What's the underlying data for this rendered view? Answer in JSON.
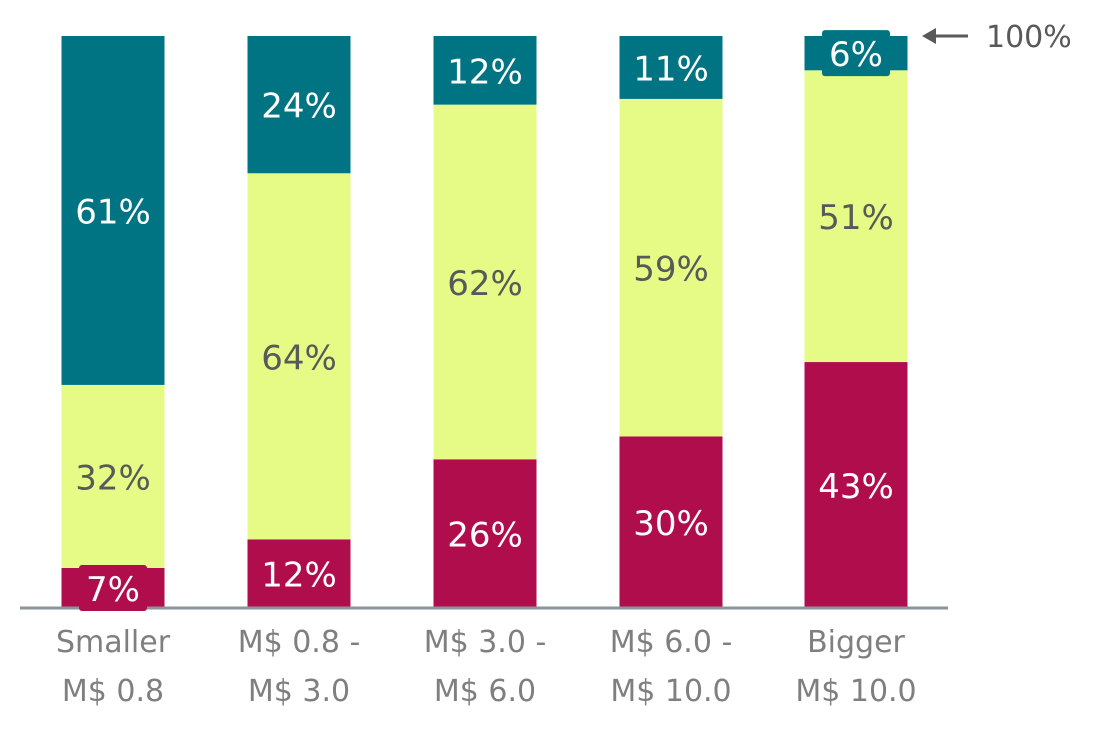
{
  "chart_data": {
    "type": "bar",
    "stacked": true,
    "categories": [
      [
        "Smaller",
        "M$ 0.8"
      ],
      [
        "M$ 0.8 -",
        "M$ 3.0"
      ],
      [
        "M$ 3.0 -",
        "M$ 6.0"
      ],
      [
        "M$ 6.0 -",
        "M$ 10.0"
      ],
      [
        "Bigger",
        "M$ 10.0"
      ]
    ],
    "series": [
      {
        "values": [
          7,
          12,
          26,
          30,
          43
        ],
        "labels": [
          "7%",
          "12%",
          "26%",
          "30%",
          "43%"
        ],
        "color": "#b00d4d",
        "text_color": "#ffffff"
      },
      {
        "values": [
          32,
          64,
          62,
          59,
          51
        ],
        "labels": [
          "32%",
          "64%",
          "62%",
          "59%",
          "51%"
        ],
        "color": "#e5fb86",
        "text_color": "#595959"
      },
      {
        "values": [
          61,
          24,
          12,
          11,
          6
        ],
        "labels": [
          "61%",
          "24%",
          "12%",
          "11%",
          "6%"
        ],
        "color": "#007482",
        "text_color": "#ffffff"
      }
    ],
    "ylim": [
      0,
      100
    ],
    "reference_label": "100%",
    "grid": false,
    "legend": "none"
  }
}
